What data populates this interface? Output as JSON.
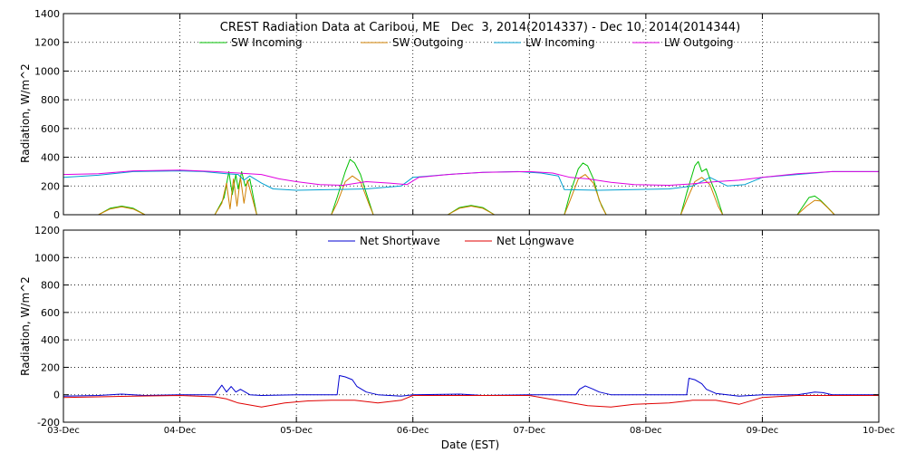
{
  "chart_data": [
    {
      "type": "line",
      "title": "CREST Radiation Data at Caribou, ME   Dec  3, 2014(2014337) - Dec 10, 2014(2014344)",
      "xlabel": "",
      "ylabel": "Radiation, W/m^2",
      "xlim": [
        0,
        7
      ],
      "ylim": [
        0,
        1400
      ],
      "yticks": [
        0,
        200,
        400,
        600,
        800,
        1000,
        1200,
        1400
      ],
      "grid": true,
      "legend_position": "top-center",
      "series": [
        {
          "name": "SW Incoming",
          "color": "#00c000",
          "points": [
            [
              0,
              0
            ],
            [
              0.3,
              0
            ],
            [
              0.4,
              45
            ],
            [
              0.5,
              60
            ],
            [
              0.6,
              45
            ],
            [
              0.7,
              0
            ],
            [
              1.3,
              0
            ],
            [
              1.38,
              120
            ],
            [
              1.42,
              300
            ],
            [
              1.45,
              140
            ],
            [
              1.48,
              280
            ],
            [
              1.5,
              180
            ],
            [
              1.53,
              300
            ],
            [
              1.56,
              200
            ],
            [
              1.6,
              250
            ],
            [
              1.66,
              0
            ],
            [
              2.3,
              0
            ],
            [
              2.35,
              120
            ],
            [
              2.42,
              300
            ],
            [
              2.46,
              385
            ],
            [
              2.5,
              360
            ],
            [
              2.55,
              280
            ],
            [
              2.6,
              150
            ],
            [
              2.66,
              0
            ],
            [
              3.3,
              0
            ],
            [
              3.4,
              50
            ],
            [
              3.5,
              65
            ],
            [
              3.6,
              50
            ],
            [
              3.7,
              0
            ],
            [
              4.3,
              0
            ],
            [
              4.35,
              150
            ],
            [
              4.42,
              320
            ],
            [
              4.46,
              360
            ],
            [
              4.5,
              340
            ],
            [
              4.55,
              250
            ],
            [
              4.6,
              100
            ],
            [
              4.66,
              0
            ],
            [
              5.3,
              0
            ],
            [
              5.35,
              150
            ],
            [
              5.42,
              340
            ],
            [
              5.45,
              370
            ],
            [
              5.48,
              300
            ],
            [
              5.52,
              320
            ],
            [
              5.55,
              250
            ],
            [
              5.6,
              150
            ],
            [
              5.66,
              0
            ],
            [
              6.3,
              0
            ],
            [
              6.35,
              60
            ],
            [
              6.4,
              120
            ],
            [
              6.45,
              130
            ],
            [
              6.5,
              100
            ],
            [
              6.55,
              60
            ],
            [
              6.62,
              0
            ],
            [
              7,
              0
            ]
          ]
        },
        {
          "name": "SW Outgoing",
          "color": "#d08000",
          "points": [
            [
              0,
              0
            ],
            [
              0.3,
              0
            ],
            [
              0.4,
              40
            ],
            [
              0.5,
              55
            ],
            [
              0.6,
              40
            ],
            [
              0.7,
              0
            ],
            [
              1.3,
              0
            ],
            [
              1.36,
              80
            ],
            [
              1.4,
              220
            ],
            [
              1.43,
              40
            ],
            [
              1.46,
              250
            ],
            [
              1.49,
              60
            ],
            [
              1.52,
              260
            ],
            [
              1.55,
              80
            ],
            [
              1.58,
              240
            ],
            [
              1.62,
              120
            ],
            [
              1.66,
              0
            ],
            [
              2.3,
              0
            ],
            [
              2.35,
              80
            ],
            [
              2.42,
              230
            ],
            [
              2.48,
              270
            ],
            [
              2.55,
              230
            ],
            [
              2.62,
              80
            ],
            [
              2.66,
              0
            ],
            [
              3.3,
              0
            ],
            [
              3.4,
              45
            ],
            [
              3.5,
              60
            ],
            [
              3.6,
              45
            ],
            [
              3.7,
              0
            ],
            [
              4.3,
              0
            ],
            [
              4.35,
              100
            ],
            [
              4.42,
              250
            ],
            [
              4.48,
              280
            ],
            [
              4.55,
              220
            ],
            [
              4.62,
              60
            ],
            [
              4.66,
              0
            ],
            [
              5.3,
              0
            ],
            [
              5.35,
              100
            ],
            [
              5.42,
              230
            ],
            [
              5.48,
              260
            ],
            [
              5.55,
              210
            ],
            [
              5.62,
              60
            ],
            [
              5.66,
              0
            ],
            [
              6.3,
              0
            ],
            [
              6.38,
              60
            ],
            [
              6.45,
              100
            ],
            [
              6.5,
              95
            ],
            [
              6.56,
              50
            ],
            [
              6.62,
              0
            ],
            [
              7,
              0
            ]
          ]
        },
        {
          "name": "LW Incoming",
          "color": "#00a0d0",
          "points": [
            [
              0,
              260
            ],
            [
              0.3,
              275
            ],
            [
              0.6,
              300
            ],
            [
              1.0,
              305
            ],
            [
              1.2,
              300
            ],
            [
              1.4,
              285
            ],
            [
              1.5,
              280
            ],
            [
              1.55,
              240
            ],
            [
              1.6,
              270
            ],
            [
              1.7,
              220
            ],
            [
              1.8,
              180
            ],
            [
              2.0,
              170
            ],
            [
              2.3,
              175
            ],
            [
              2.6,
              180
            ],
            [
              2.9,
              200
            ],
            [
              3.0,
              260
            ],
            [
              3.3,
              280
            ],
            [
              3.6,
              295
            ],
            [
              3.9,
              300
            ],
            [
              4.1,
              290
            ],
            [
              4.25,
              270
            ],
            [
              4.3,
              175
            ],
            [
              4.6,
              170
            ],
            [
              4.9,
              175
            ],
            [
              5.2,
              180
            ],
            [
              5.4,
              200
            ],
            [
              5.55,
              260
            ],
            [
              5.7,
              200
            ],
            [
              5.85,
              210
            ],
            [
              6.0,
              260
            ],
            [
              6.3,
              280
            ],
            [
              6.6,
              300
            ],
            [
              7,
              300
            ]
          ]
        },
        {
          "name": "LW Outgoing",
          "color": "#e000e0",
          "points": [
            [
              0,
              280
            ],
            [
              0.3,
              285
            ],
            [
              0.6,
              305
            ],
            [
              1.0,
              310
            ],
            [
              1.3,
              300
            ],
            [
              1.5,
              290
            ],
            [
              1.7,
              280
            ],
            [
              1.85,
              250
            ],
            [
              2.0,
              230
            ],
            [
              2.2,
              210
            ],
            [
              2.4,
              205
            ],
            [
              2.6,
              230
            ],
            [
              2.8,
              220
            ],
            [
              2.95,
              210
            ],
            [
              3.05,
              260
            ],
            [
              3.3,
              280
            ],
            [
              3.6,
              295
            ],
            [
              4.0,
              300
            ],
            [
              4.2,
              290
            ],
            [
              4.35,
              260
            ],
            [
              4.5,
              250
            ],
            [
              4.7,
              225
            ],
            [
              4.9,
              210
            ],
            [
              5.2,
              205
            ],
            [
              5.4,
              215
            ],
            [
              5.6,
              230
            ],
            [
              5.8,
              240
            ],
            [
              6.0,
              260
            ],
            [
              6.3,
              285
            ],
            [
              6.6,
              300
            ],
            [
              7,
              300
            ]
          ]
        }
      ]
    },
    {
      "type": "line",
      "title": "",
      "xlabel": "Date (EST)",
      "ylabel": "Radiation, W/m^2",
      "xlim": [
        0,
        7
      ],
      "ylim": [
        -200,
        1200
      ],
      "yticks": [
        -200,
        0,
        200,
        400,
        600,
        800,
        1000,
        1200
      ],
      "xtick_labels": [
        "03-Dec",
        "04-Dec",
        "05-Dec",
        "06-Dec",
        "07-Dec",
        "08-Dec",
        "09-Dec",
        "10-Dec"
      ],
      "grid": true,
      "legend_position": "top-center",
      "series": [
        {
          "name": "Net Shortwave",
          "color": "#0000d0",
          "points": [
            [
              0,
              -10
            ],
            [
              0.3,
              -5
            ],
            [
              0.5,
              5
            ],
            [
              0.7,
              -5
            ],
            [
              1.0,
              0
            ],
            [
              1.3,
              0
            ],
            [
              1.36,
              70
            ],
            [
              1.4,
              20
            ],
            [
              1.44,
              60
            ],
            [
              1.48,
              20
            ],
            [
              1.52,
              40
            ],
            [
              1.56,
              20
            ],
            [
              1.6,
              0
            ],
            [
              1.7,
              -5
            ],
            [
              2.0,
              0
            ],
            [
              2.35,
              0
            ],
            [
              2.37,
              140
            ],
            [
              2.42,
              130
            ],
            [
              2.48,
              110
            ],
            [
              2.52,
              60
            ],
            [
              2.6,
              20
            ],
            [
              2.7,
              0
            ],
            [
              2.9,
              -10
            ],
            [
              3.0,
              0
            ],
            [
              3.4,
              5
            ],
            [
              3.6,
              -5
            ],
            [
              4.0,
              0
            ],
            [
              4.4,
              0
            ],
            [
              4.43,
              40
            ],
            [
              4.48,
              65
            ],
            [
              4.55,
              40
            ],
            [
              4.6,
              20
            ],
            [
              4.7,
              0
            ],
            [
              5.35,
              0
            ],
            [
              5.37,
              120
            ],
            [
              5.42,
              110
            ],
            [
              5.48,
              80
            ],
            [
              5.52,
              40
            ],
            [
              5.6,
              10
            ],
            [
              5.7,
              0
            ],
            [
              5.8,
              -10
            ],
            [
              6.0,
              0
            ],
            [
              6.3,
              0
            ],
            [
              6.38,
              10
            ],
            [
              6.45,
              20
            ],
            [
              6.52,
              15
            ],
            [
              6.6,
              0
            ],
            [
              7,
              0
            ]
          ]
        },
        {
          "name": "Net Longwave",
          "color": "#e00000",
          "points": [
            [
              0,
              -20
            ],
            [
              0.3,
              -15
            ],
            [
              0.6,
              -10
            ],
            [
              1.0,
              -5
            ],
            [
              1.3,
              -15
            ],
            [
              1.4,
              -30
            ],
            [
              1.5,
              -60
            ],
            [
              1.7,
              -90
            ],
            [
              1.9,
              -60
            ],
            [
              2.1,
              -45
            ],
            [
              2.3,
              -40
            ],
            [
              2.5,
              -40
            ],
            [
              2.7,
              -60
            ],
            [
              2.9,
              -40
            ],
            [
              3.0,
              -5
            ],
            [
              3.3,
              -5
            ],
            [
              3.6,
              -5
            ],
            [
              4.0,
              -5
            ],
            [
              4.3,
              -50
            ],
            [
              4.5,
              -80
            ],
            [
              4.7,
              -90
            ],
            [
              4.9,
              -70
            ],
            [
              5.2,
              -60
            ],
            [
              5.4,
              -40
            ],
            [
              5.6,
              -40
            ],
            [
              5.8,
              -70
            ],
            [
              6.0,
              -20
            ],
            [
              6.3,
              -5
            ],
            [
              6.6,
              -5
            ],
            [
              7,
              -5
            ]
          ]
        }
      ]
    }
  ]
}
